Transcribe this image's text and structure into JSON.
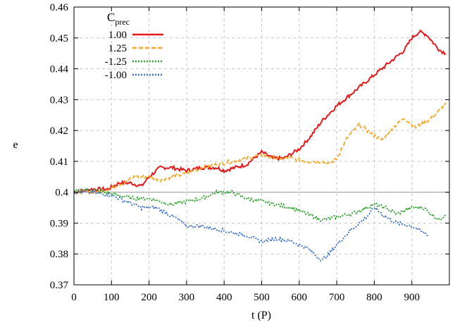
{
  "chart_data": {
    "type": "line",
    "xlabel": "t (P)",
    "ylabel": "e",
    "xlim": [
      0,
      1000
    ],
    "ylim": [
      0.37,
      0.46
    ],
    "x_ticks": [
      "0",
      "100",
      "200",
      "300",
      "400",
      "500",
      "600",
      "700",
      "800",
      "900"
    ],
    "y_ticks": [
      "0.37",
      "0.38",
      "0.39",
      "0.4",
      "0.41",
      "0.42",
      "0.43",
      "0.44",
      "0.45",
      "0.46"
    ],
    "grid": true,
    "legend_position": "top-left",
    "legend_title": "C",
    "legend_title_sub": "prec",
    "reference_line": {
      "y": 0.4,
      "color": "#999999"
    },
    "series": [
      {
        "name": "1.00",
        "color": "#e41a1c",
        "style": "solid",
        "x": [
          0,
          50,
          90,
          120,
          150,
          180,
          200,
          230,
          260,
          300,
          340,
          380,
          400,
          430,
          460,
          500,
          530,
          560,
          600,
          630,
          660,
          700,
          730,
          760,
          800,
          830,
          860,
          880,
          900,
          920,
          940,
          960,
          975,
          990
        ],
        "y": [
          0.4,
          0.401,
          0.401,
          0.403,
          0.403,
          0.402,
          0.405,
          0.408,
          0.408,
          0.407,
          0.408,
          0.408,
          0.407,
          0.408,
          0.409,
          0.413,
          0.411,
          0.411,
          0.414,
          0.418,
          0.423,
          0.428,
          0.431,
          0.434,
          0.438,
          0.441,
          0.444,
          0.446,
          0.45,
          0.452,
          0.451,
          0.448,
          0.446,
          0.445
        ]
      },
      {
        "name": "1.25",
        "color": "#f5a623",
        "style": "dashed",
        "x": [
          0,
          50,
          90,
          130,
          160,
          200,
          230,
          260,
          300,
          340,
          380,
          420,
          460,
          500,
          540,
          580,
          620,
          660,
          680,
          700,
          730,
          760,
          790,
          820,
          850,
          880,
          910,
          940,
          970,
          990
        ],
        "y": [
          0.4,
          0.4,
          0.401,
          0.403,
          0.405,
          0.405,
          0.404,
          0.405,
          0.406,
          0.408,
          0.409,
          0.41,
          0.411,
          0.412,
          0.411,
          0.411,
          0.41,
          0.41,
          0.409,
          0.411,
          0.418,
          0.422,
          0.419,
          0.417,
          0.421,
          0.424,
          0.421,
          0.423,
          0.426,
          0.429
        ]
      },
      {
        "name": "-1.25",
        "color": "#2ca02c",
        "style": "dotted",
        "x": [
          0,
          40,
          80,
          120,
          160,
          200,
          230,
          260,
          300,
          340,
          380,
          420,
          460,
          500,
          540,
          580,
          620,
          660,
          700,
          740,
          780,
          800,
          830,
          860,
          900,
          930,
          950,
          975,
          990
        ],
        "y": [
          0.4,
          0.401,
          0.4,
          0.399,
          0.398,
          0.398,
          0.397,
          0.396,
          0.397,
          0.398,
          0.4,
          0.4,
          0.398,
          0.397,
          0.396,
          0.395,
          0.393,
          0.391,
          0.392,
          0.393,
          0.395,
          0.396,
          0.395,
          0.393,
          0.395,
          0.395,
          0.393,
          0.391,
          0.393
        ]
      },
      {
        "name": "-1.00",
        "color": "#3a6fc9",
        "style": "dotted",
        "x": [
          0,
          50,
          100,
          140,
          180,
          220,
          250,
          280,
          300,
          340,
          380,
          420,
          460,
          500,
          540,
          580,
          620,
          660,
          680,
          700,
          740,
          780,
          800,
          830,
          860,
          900,
          930,
          945
        ],
        "y": [
          0.4,
          0.4,
          0.399,
          0.397,
          0.395,
          0.395,
          0.393,
          0.391,
          0.389,
          0.389,
          0.388,
          0.387,
          0.386,
          0.384,
          0.385,
          0.384,
          0.382,
          0.378,
          0.38,
          0.383,
          0.388,
          0.392,
          0.395,
          0.392,
          0.39,
          0.389,
          0.387,
          0.386
        ]
      }
    ]
  }
}
